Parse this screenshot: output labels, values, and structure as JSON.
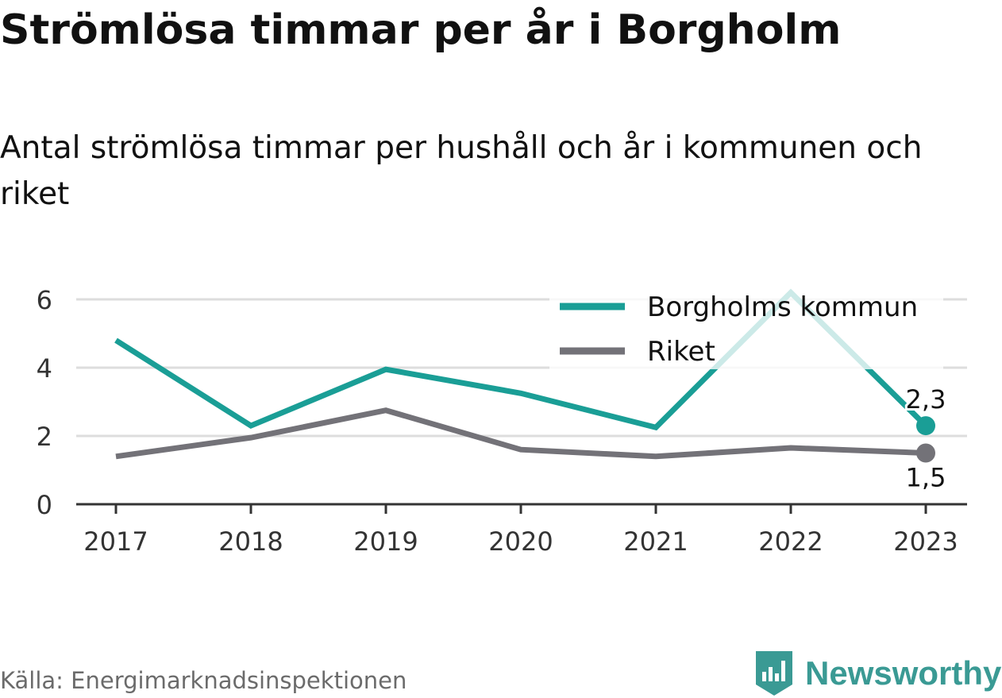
{
  "title": "Strömlösa timmar per år i Borgholm",
  "subtitle": "Antal strömlösa timmar per hushåll och år i kommunen och riket",
  "source": "Källa: Energimarknadsinspektionen",
  "brand": "Newsworthy",
  "colors": {
    "kommun": "#1a9e96",
    "riket": "#737278",
    "grid": "#dddddd",
    "axis": "#333333",
    "text": "#333333"
  },
  "chart_data": {
    "type": "line",
    "categories": [
      "2017",
      "2018",
      "2019",
      "2020",
      "2021",
      "2022",
      "2023"
    ],
    "series": [
      {
        "name": "Borgholms kommun",
        "values": [
          4.8,
          2.3,
          3.95,
          3.25,
          2.25,
          6.2,
          2.3
        ]
      },
      {
        "name": "Riket",
        "values": [
          1.4,
          1.95,
          2.75,
          1.6,
          1.4,
          1.65,
          1.5
        ]
      }
    ],
    "yticks": [
      "0",
      "2",
      "4",
      "6"
    ],
    "ylim": [
      0,
      6.8
    ],
    "end_labels": [
      "2,3",
      "1,5"
    ],
    "legend_position": "top-right",
    "grid": true
  }
}
